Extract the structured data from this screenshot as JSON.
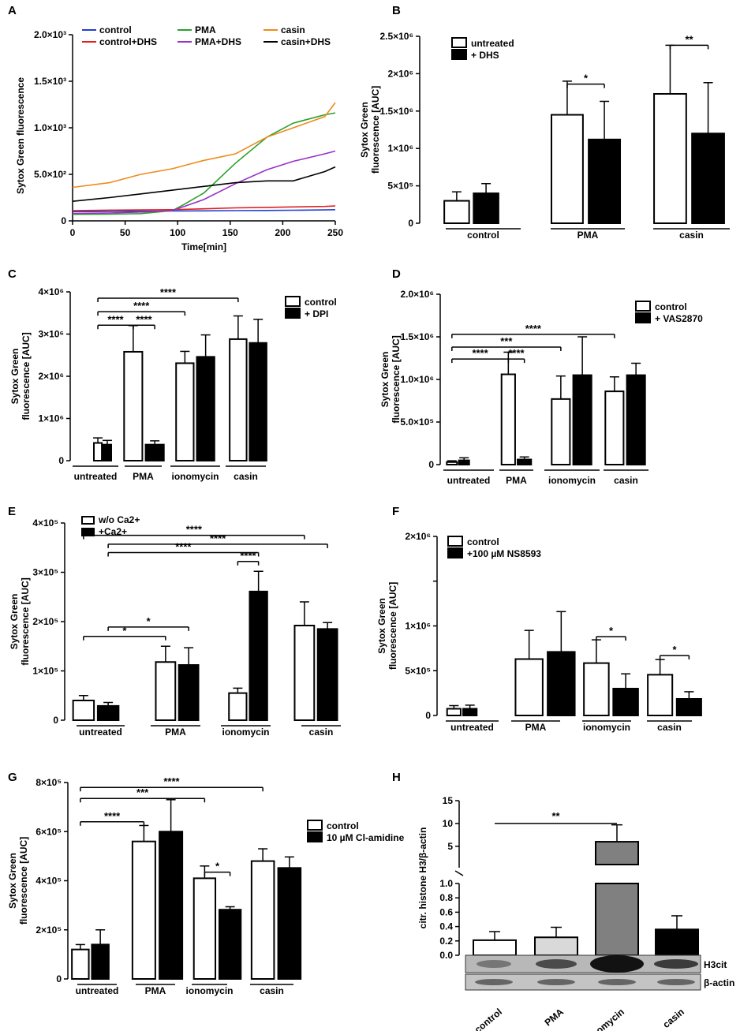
{
  "chart_data": [
    {
      "panel": "A",
      "type": "line",
      "xlabel": "Time[min]",
      "ylabel": "Sytox Green fluorescence",
      "xlim": [
        0,
        250
      ],
      "ylim": [
        0,
        2000
      ],
      "xticks": [
        0,
        50,
        100,
        150,
        200,
        250
      ],
      "xtick_labels": [
        "0",
        "50",
        "100",
        "150",
        "200",
        "250"
      ],
      "yticks": [
        0,
        500,
        1000,
        1500,
        2000
      ],
      "ytick_labels": [
        "0",
        "5.0×10²",
        "1.0×10³",
        "1.5×10³",
        "2.0×10³"
      ],
      "series": [
        {
          "name": "control",
          "color": "#1f3fd0",
          "x": [
            0,
            35,
            65,
            95,
            125,
            155,
            185,
            210,
            240,
            250
          ],
          "values": [
            100,
            102,
            104,
            106,
            108,
            110,
            112,
            114,
            118,
            120
          ]
        },
        {
          "name": "control+DHS",
          "color": "#e02020",
          "x": [
            0,
            35,
            65,
            95,
            125,
            155,
            185,
            210,
            240,
            250
          ],
          "values": [
            110,
            115,
            118,
            120,
            130,
            140,
            145,
            150,
            155,
            160
          ]
        },
        {
          "name": "PMA",
          "color": "#2aa02a",
          "x": [
            0,
            35,
            65,
            95,
            105,
            125,
            155,
            185,
            210,
            240,
            250
          ],
          "values": [
            70,
            72,
            78,
            110,
            170,
            300,
            620,
            900,
            1050,
            1140,
            1160
          ]
        },
        {
          "name": "PMA+DHS",
          "color": "#9a30c8",
          "x": [
            0,
            35,
            65,
            95,
            125,
            155,
            185,
            210,
            240,
            250
          ],
          "values": [
            80,
            85,
            95,
            110,
            230,
            400,
            550,
            640,
            720,
            750
          ]
        },
        {
          "name": "casin",
          "color": "#f08a1c",
          "x": [
            0,
            35,
            65,
            95,
            125,
            155,
            185,
            210,
            240,
            250
          ],
          "values": [
            360,
            410,
            500,
            560,
            650,
            720,
            900,
            1000,
            1120,
            1270
          ]
        },
        {
          "name": "casin+DHS",
          "color": "#000000",
          "x": [
            0,
            35,
            65,
            95,
            125,
            155,
            185,
            210,
            240,
            250
          ],
          "values": [
            210,
            250,
            290,
            330,
            370,
            410,
            430,
            430,
            530,
            580
          ]
        }
      ]
    },
    {
      "panel": "B",
      "type": "bar",
      "ylabel_lines": [
        "Sytox Green",
        "fluorescence [AUC]"
      ],
      "ylim": [
        0,
        2500000
      ],
      "yticks": [
        0,
        500000,
        1000000,
        1500000,
        2000000,
        2500000
      ],
      "ytick_labels": [
        "0",
        "5×10⁵",
        "1×10⁶",
        "1.5×10⁶",
        "2×10⁶",
        "2.5×10⁶"
      ],
      "categories": [
        "control",
        "PMA",
        "casin"
      ],
      "series": [
        {
          "name": "untreated",
          "fill": "#ffffff",
          "values": [
            300000,
            1450000,
            1730000
          ],
          "errors": [
            120000,
            450000,
            650000
          ]
        },
        {
          "name": "+ DHS",
          "fill": "#000000",
          "values": [
            400000,
            1120000,
            1200000
          ],
          "errors": [
            130000,
            510000,
            680000
          ]
        }
      ],
      "significance": [
        {
          "category": 1,
          "label": "*",
          "y": 1860000
        },
        {
          "category": 2,
          "label": "**",
          "y": 2380000
        }
      ]
    },
    {
      "panel": "C",
      "type": "bar",
      "ylabel_lines": [
        "Sytox Green",
        "fluorescence [AUC]"
      ],
      "ylim": [
        0,
        4000000
      ],
      "yticks": [
        0,
        1000000,
        2000000,
        3000000,
        4000000
      ],
      "ytick_labels": [
        "0",
        "1×10⁶",
        "2×10⁶",
        "3×10⁶",
        "4×10⁶"
      ],
      "categories": [
        "untreated",
        "PMA",
        "ionomycin",
        "casin"
      ],
      "series": [
        {
          "name": "control",
          "fill": "#ffffff",
          "values": [
            420000,
            2580000,
            2310000,
            2880000
          ],
          "errors": [
            120000,
            620000,
            280000,
            550000
          ]
        },
        {
          "name": "+ DPI",
          "fill": "#000000",
          "values": [
            380000,
            380000,
            2460000,
            2790000
          ],
          "errors": [
            100000,
            90000,
            520000,
            560000
          ]
        }
      ],
      "significance": [
        {
          "from": [
            0,
            0
          ],
          "to": [
            3,
            0
          ],
          "label": "****",
          "y": 3850000
        },
        {
          "from": [
            0,
            0
          ],
          "to": [
            2,
            0
          ],
          "label": "****",
          "y": 3530000
        },
        {
          "from": [
            0,
            0
          ],
          "to": [
            1,
            0
          ],
          "label": "****",
          "y": 3210000
        },
        {
          "from": [
            1,
            0
          ],
          "to": [
            1,
            1
          ],
          "label": "****",
          "y": 3210000
        }
      ]
    },
    {
      "panel": "D",
      "type": "bar",
      "ylabel_lines": [
        "Sytox Green",
        "fluorescence [AUC]"
      ],
      "ylim": [
        0,
        2000000
      ],
      "yticks": [
        0,
        500000,
        1000000,
        1500000,
        2000000
      ],
      "ytick_labels": [
        "0",
        "5.0×10⁵",
        "1.0×10⁶",
        "1.5×10⁶",
        "2.0×10⁶"
      ],
      "categories": [
        "untreated",
        "PMA",
        "ionomycin",
        "casin"
      ],
      "series": [
        {
          "name": "control",
          "fill": "#ffffff",
          "values": [
            30000,
            1060000,
            770000,
            860000
          ],
          "errors": [
            15000,
            260000,
            270000,
            170000
          ]
        },
        {
          "name": "+ VAS2870",
          "fill": "#000000",
          "values": [
            50000,
            60000,
            1050000,
            1050000
          ],
          "errors": [
            30000,
            30000,
            450000,
            140000
          ]
        }
      ],
      "significance": [
        {
          "from": [
            0,
            0
          ],
          "to": [
            3,
            0
          ],
          "label": "****",
          "y": 1530000
        },
        {
          "from": [
            0,
            0
          ],
          "to": [
            2,
            0
          ],
          "label": "***",
          "y": 1380000
        },
        {
          "from": [
            0,
            0
          ],
          "to": [
            1,
            0
          ],
          "label": "****",
          "y": 1240000
        },
        {
          "from": [
            1,
            0
          ],
          "to": [
            1,
            1
          ],
          "label": "****",
          "y": 1240000
        }
      ]
    },
    {
      "panel": "E",
      "type": "bar",
      "ylabel_lines": [
        "Sytox Green",
        "fluorescence [AUC]"
      ],
      "ylim": [
        0,
        400000
      ],
      "yticks": [
        0,
        100000,
        200000,
        300000,
        400000
      ],
      "ytick_labels": [
        "0",
        "1×10⁵",
        "2×10⁵",
        "3×10⁵",
        "4×10⁵"
      ],
      "categories": [
        "untreated",
        "PMA",
        "ionomycin",
        "casin"
      ],
      "series": [
        {
          "name": "w/o Ca2+",
          "fill": "#ffffff",
          "values": [
            40000,
            118000,
            55000,
            192000
          ],
          "errors": [
            10000,
            32000,
            10000,
            48000
          ]
        },
        {
          "name": "+Ca2+",
          "fill": "#000000",
          "values": [
            29000,
            112000,
            261000,
            185000
          ],
          "errors": [
            7000,
            35000,
            41000,
            13000
          ]
        }
      ],
      "significance": [
        {
          "from": [
            0,
            0
          ],
          "to": [
            3,
            0
          ],
          "label": "****",
          "y": 375000
        },
        {
          "from": [
            0,
            1
          ],
          "to": [
            3,
            1
          ],
          "label": "****",
          "y": 357000
        },
        {
          "from": [
            0,
            1
          ],
          "to": [
            2,
            1
          ],
          "label": "****",
          "y": 340000
        },
        {
          "from": [
            2,
            0
          ],
          "to": [
            2,
            1
          ],
          "label": "****",
          "y": 322000
        },
        {
          "from": [
            0,
            1
          ],
          "to": [
            1,
            1
          ],
          "label": "*",
          "y": 189000
        },
        {
          "from": [
            0,
            0
          ],
          "to": [
            1,
            0
          ],
          "label": "*",
          "y": 170000
        }
      ]
    },
    {
      "panel": "F",
      "type": "bar",
      "ylabel_lines": [
        "Sytox Green",
        "fluorescence [AUC]"
      ],
      "ylim": [
        0,
        2000000
      ],
      "yticks": [
        0,
        500000,
        1000000,
        1500000,
        2000000
      ],
      "ytick_labels": [
        "0",
        "5×10⁵",
        "1×10⁶",
        "",
        "2×10⁶"
      ],
      "categories": [
        "untreated",
        "PMA",
        "ionomycin",
        "casin"
      ],
      "series": [
        {
          "name": "control",
          "fill": "#ffffff",
          "values": [
            75000,
            630000,
            585000,
            455000
          ],
          "errors": [
            35000,
            320000,
            260000,
            170000
          ]
        },
        {
          "name": "+100 µM NS8593",
          "fill": "#000000",
          "values": [
            75000,
            710000,
            300000,
            185000
          ],
          "errors": [
            40000,
            450000,
            165000,
            80000
          ]
        }
      ],
      "significance": [
        {
          "category": 2,
          "label": "*",
          "y": 880000
        },
        {
          "category": 3,
          "label": "*",
          "y": 670000
        }
      ]
    },
    {
      "panel": "G",
      "type": "bar",
      "ylabel_lines": [
        "Sytox Green",
        "fluorescence [AUC]"
      ],
      "ylim": [
        0,
        800000
      ],
      "yticks": [
        0,
        200000,
        400000,
        600000,
        800000
      ],
      "ytick_labels": [
        "0",
        "2×10⁵",
        "4×10⁵",
        "6×10⁵",
        "8×10⁵"
      ],
      "categories": [
        "untreated",
        "PMA",
        "ionomycin",
        "casin"
      ],
      "series": [
        {
          "name": "control",
          "fill": "#ffffff",
          "values": [
            120000,
            560000,
            410000,
            480000
          ],
          "errors": [
            20000,
            65000,
            50000,
            50000
          ]
        },
        {
          "name": "10 µM Cl-amidine",
          "fill": "#000000",
          "values": [
            140000,
            600000,
            282000,
            452000
          ],
          "errors": [
            60000,
            130000,
            12000,
            45000
          ]
        }
      ],
      "significance": [
        {
          "from": [
            0,
            0
          ],
          "to": [
            3,
            0
          ],
          "label": "****",
          "y": 780000
        },
        {
          "from": [
            0,
            0
          ],
          "to": [
            2,
            0
          ],
          "label": "***",
          "y": 735000
        },
        {
          "from": [
            0,
            0
          ],
          "to": [
            1,
            0
          ],
          "label": "****",
          "y": 640000
        },
        {
          "from": [
            2,
            0
          ],
          "to": [
            2,
            1
          ],
          "label": "*",
          "y": 435000
        }
      ]
    },
    {
      "panel": "H",
      "type": "bar",
      "ylabel": "citr. histone H3/β-actin",
      "broken_axis": true,
      "ylim_lower": [
        0,
        1.0
      ],
      "ylim_upper": [
        1.0,
        15
      ],
      "yticks": [
        0,
        0.2,
        0.4,
        0.6,
        0.8,
        1.0,
        5,
        10,
        15
      ],
      "ytick_labels": [
        "0.0",
        "0.2",
        "0.4",
        "0.6",
        "0.8",
        "1.0",
        "5",
        "10",
        "15"
      ],
      "categories": [
        "control",
        "PMA",
        "ionomycin",
        "casin"
      ],
      "values": [
        0.21,
        0.25,
        6.0,
        0.36
      ],
      "errors": [
        0.12,
        0.14,
        3.7,
        0.19
      ],
      "fills": [
        "#ffffff",
        "#d9d9d9",
        "#808080",
        "#000000"
      ],
      "significance": [
        {
          "from": 0,
          "to": 2,
          "label": "**",
          "y": 10
        }
      ],
      "blot_labels": [
        "H3cit",
        "β-actin"
      ]
    }
  ]
}
